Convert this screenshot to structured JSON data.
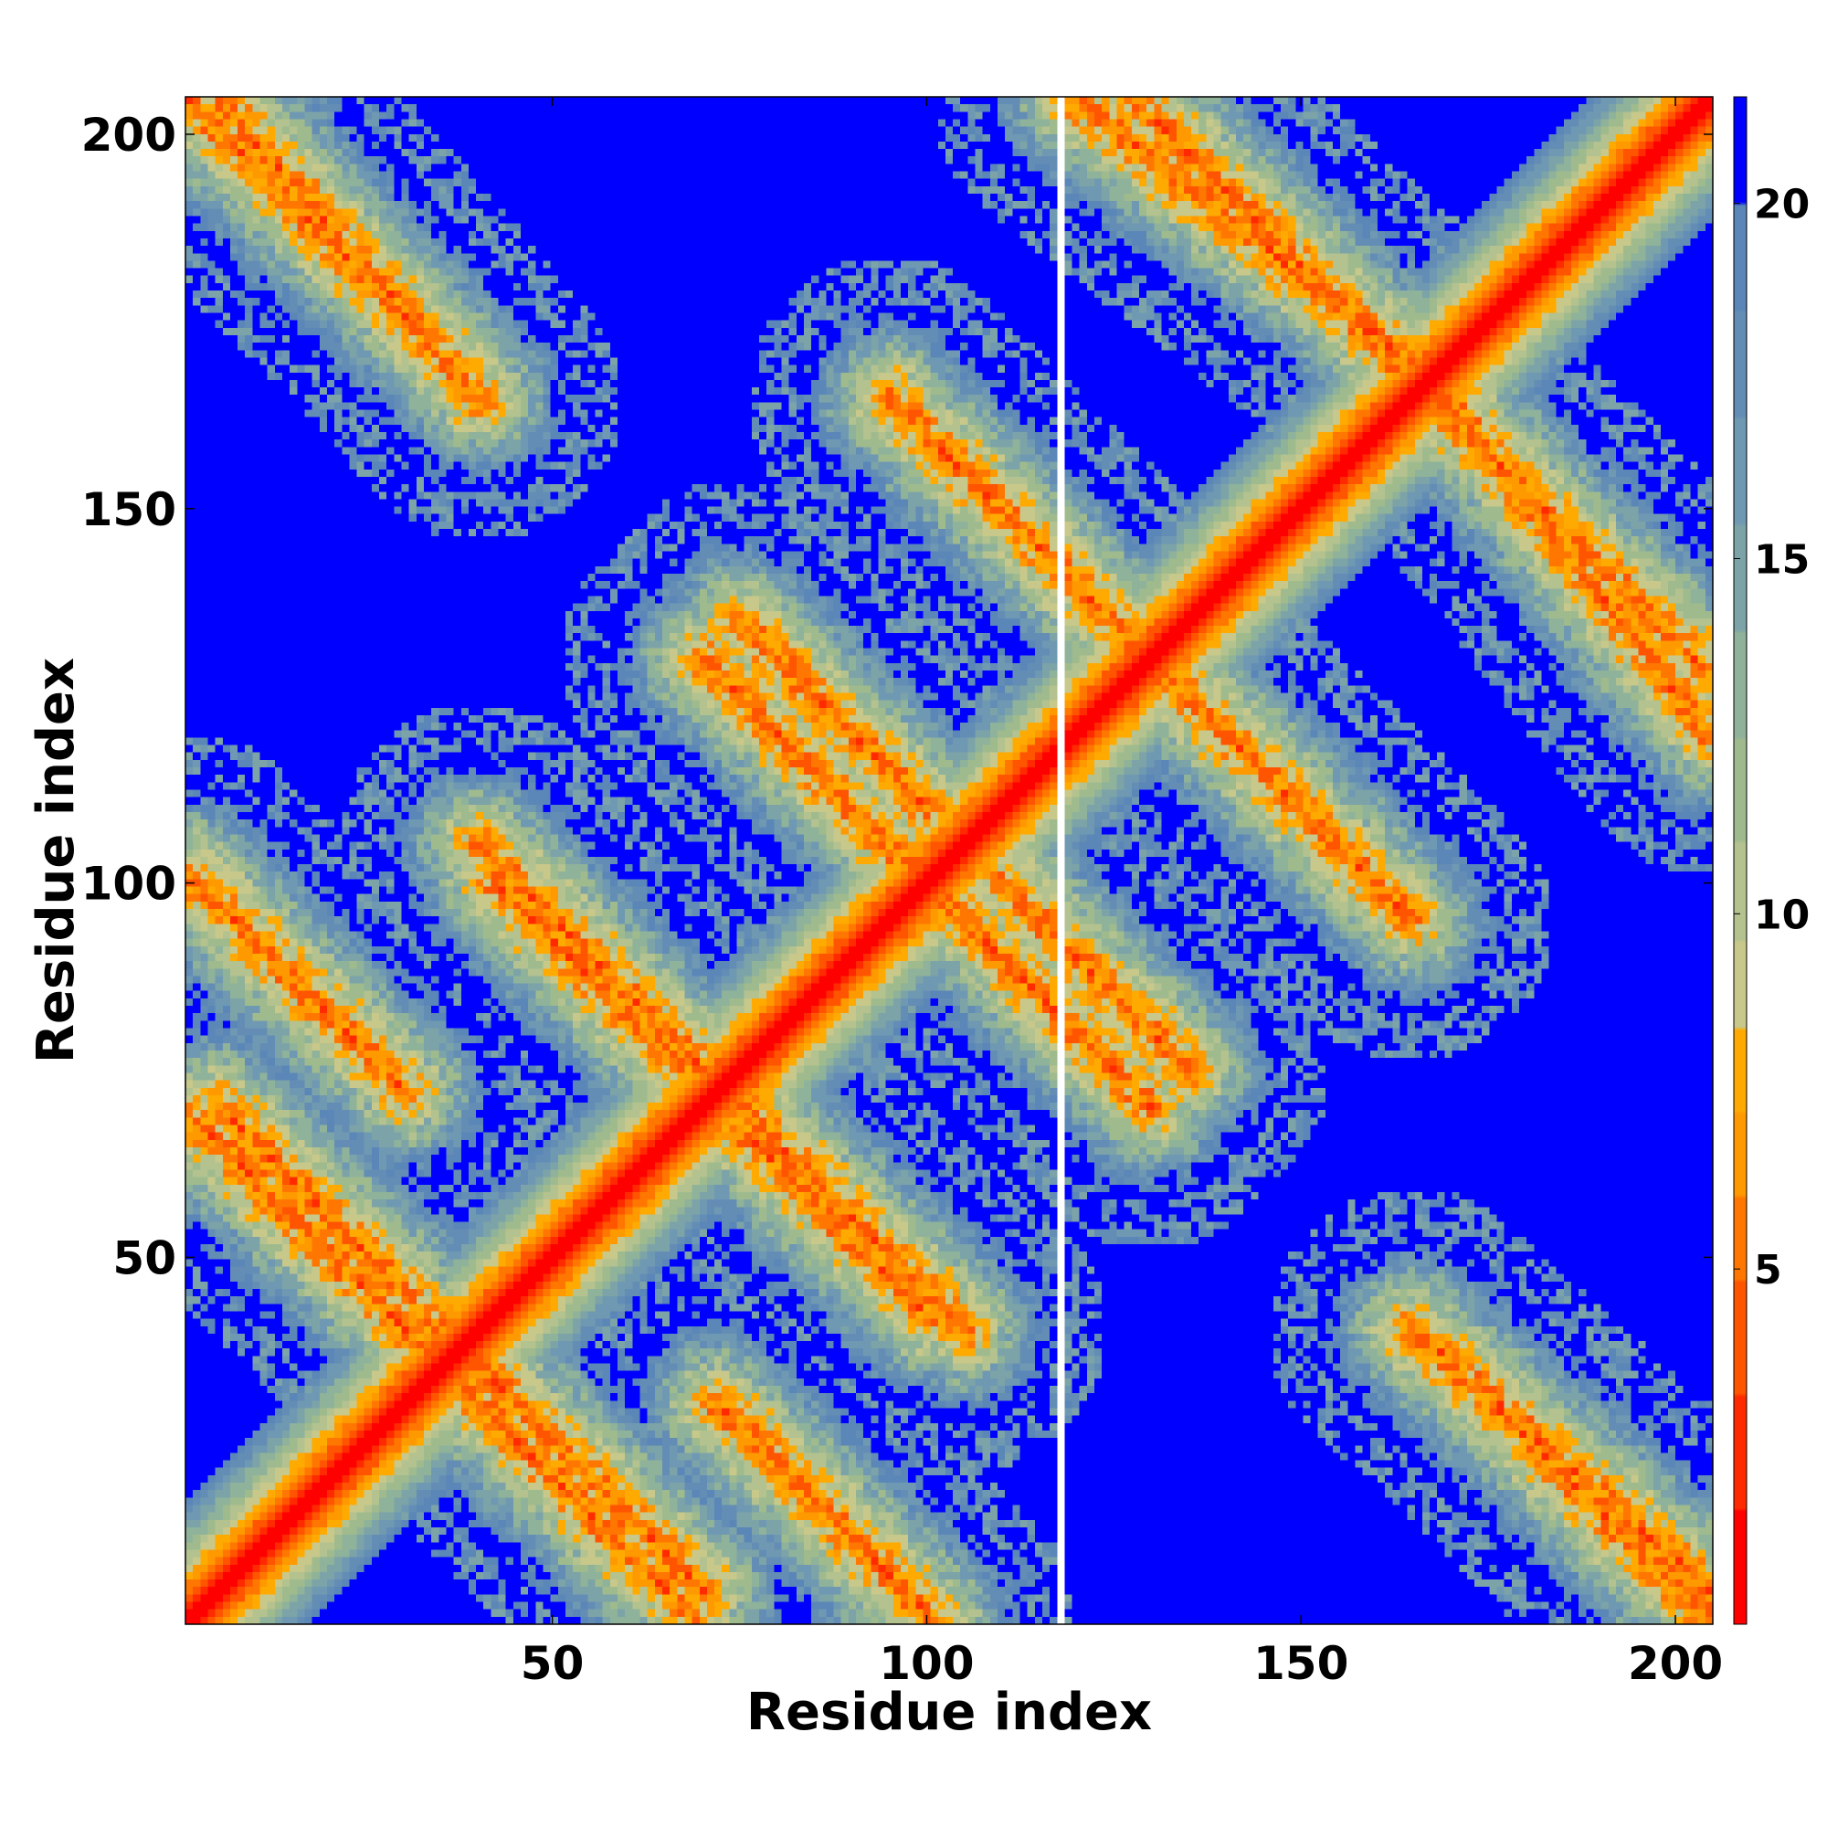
{
  "chart_data": {
    "type": "heatmap",
    "title": "",
    "xlabel": "Residue index",
    "ylabel": "Residue index",
    "xlim": [
      1,
      205
    ],
    "ylim": [
      1,
      205
    ],
    "x_ticks": [
      50,
      100,
      150,
      200
    ],
    "y_ticks": [
      50,
      100,
      150,
      200
    ],
    "n_residues": 205,
    "description_of_values": "pairwise distance between residues (diagonal ~0, values above threshold saturated)",
    "colorbar": {
      "range": [
        0,
        21.5
      ],
      "ticks": [
        5,
        10,
        15,
        20
      ],
      "colors": [
        {
          "max": 1.6,
          "color": "#ff0000"
        },
        {
          "max": 3.2,
          "color": "#ff2a00"
        },
        {
          "max": 4.8,
          "color": "#ff5500"
        },
        {
          "max": 6.0,
          "color": "#ff7700"
        },
        {
          "max": 7.2,
          "color": "#ff9900"
        },
        {
          "max": 8.4,
          "color": "#ffaa00"
        },
        {
          "max": 9.6,
          "color": "#c8c88a"
        },
        {
          "max": 11.0,
          "color": "#b3c28f"
        },
        {
          "max": 12.5,
          "color": "#9fbb8e"
        },
        {
          "max": 14.0,
          "color": "#8fb29a"
        },
        {
          "max": 15.5,
          "color": "#7ca3a8"
        },
        {
          "max": 17.0,
          "color": "#6f99b2"
        },
        {
          "max": 18.5,
          "color": "#648db5"
        },
        {
          "max": 20.0,
          "color": "#5a86b8"
        },
        {
          "max": 999,
          "color": "#0000ff"
        }
      ]
    },
    "diagonal_band": {
      "from": [
        1,
        1
      ],
      "to": [
        205,
        205
      ],
      "value_on_diagonal": 0
    },
    "off_diagonal_bands": [
      {
        "orientation": "anti",
        "from": [
          1,
          205
        ],
        "to": [
          35,
          171
        ]
      },
      {
        "orientation": "anti",
        "from": [
          1,
          101
        ],
        "to": [
          30,
          72
        ]
      },
      {
        "orientation": "anti",
        "from": [
          1,
          69
        ],
        "to": [
          33,
          37
        ]
      },
      {
        "orientation": "anti",
        "from": [
          40,
          105
        ],
        "to": [
          72,
          73
        ]
      },
      {
        "orientation": "anti",
        "from": [
          75,
          67
        ],
        "to": [
          100,
          42
        ]
      },
      {
        "orientation": "anti",
        "from": [
          40,
          35
        ],
        "to": [
          70,
          5
        ]
      },
      {
        "orientation": "anti",
        "from": [
          100,
          160
        ],
        "to": [
          130,
          130
        ]
      },
      {
        "orientation": "anti",
        "from": [
          130,
          130
        ],
        "to": [
          165,
          95
        ]
      },
      {
        "orientation": "anti",
        "from": [
          100,
          100
        ],
        "to": [
          130,
          70
        ]
      },
      {
        "orientation": "anti",
        "from": [
          75,
          135
        ],
        "to": [
          100,
          110
        ]
      },
      {
        "orientation": "anti",
        "from": [
          120,
          205
        ],
        "to": [
          165,
          170
        ]
      },
      {
        "orientation": "anti",
        "from": [
          163,
          170
        ],
        "to": [
          205,
          128
        ]
      },
      {
        "orientation": "anti",
        "from": [
          165,
          40
        ],
        "to": [
          205,
          5
        ]
      }
    ],
    "artifact_column_x": 118
  }
}
